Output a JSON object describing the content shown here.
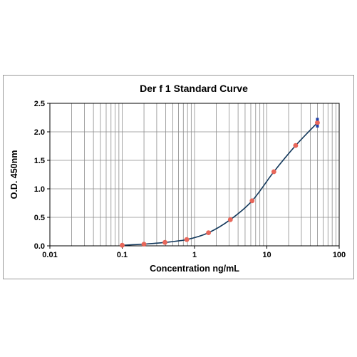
{
  "chart_data": {
    "type": "scatter",
    "title": "Der f 1 Standard Curve",
    "xlabel": "Concentration ng/mL",
    "ylabel": "O.D. 450nm",
    "xscale": "log",
    "xlim": [
      0.01,
      100
    ],
    "ylim": [
      0,
      2.5
    ],
    "x_ticks": [
      "0.01",
      "0.1",
      "1",
      "10",
      "100"
    ],
    "y_ticks": [
      "0.0",
      "0.5",
      "1.0",
      "1.5",
      "2.0",
      "2.5"
    ],
    "grid": true,
    "legend": "none",
    "series": [
      {
        "color": "#e8675a",
        "x": [
          0.1,
          0.2,
          0.39,
          0.78,
          1.56,
          3.13,
          6.25,
          12.5,
          25,
          50
        ],
        "y": [
          0.01,
          0.03,
          0.06,
          0.11,
          0.23,
          0.46,
          0.79,
          1.3,
          1.76,
          2.16
        ]
      },
      {
        "color": "#1f3fa8",
        "x": [
          50,
          50
        ],
        "y": [
          2.22,
          2.1
        ]
      }
    ],
    "fit": {
      "color": "#14395c",
      "x": [
        0.1,
        0.2,
        0.39,
        0.78,
        1.56,
        3.13,
        6.25,
        12.5,
        25,
        50
      ],
      "y": [
        0.01,
        0.03,
        0.06,
        0.11,
        0.23,
        0.46,
        0.79,
        1.3,
        1.76,
        2.16
      ]
    }
  }
}
